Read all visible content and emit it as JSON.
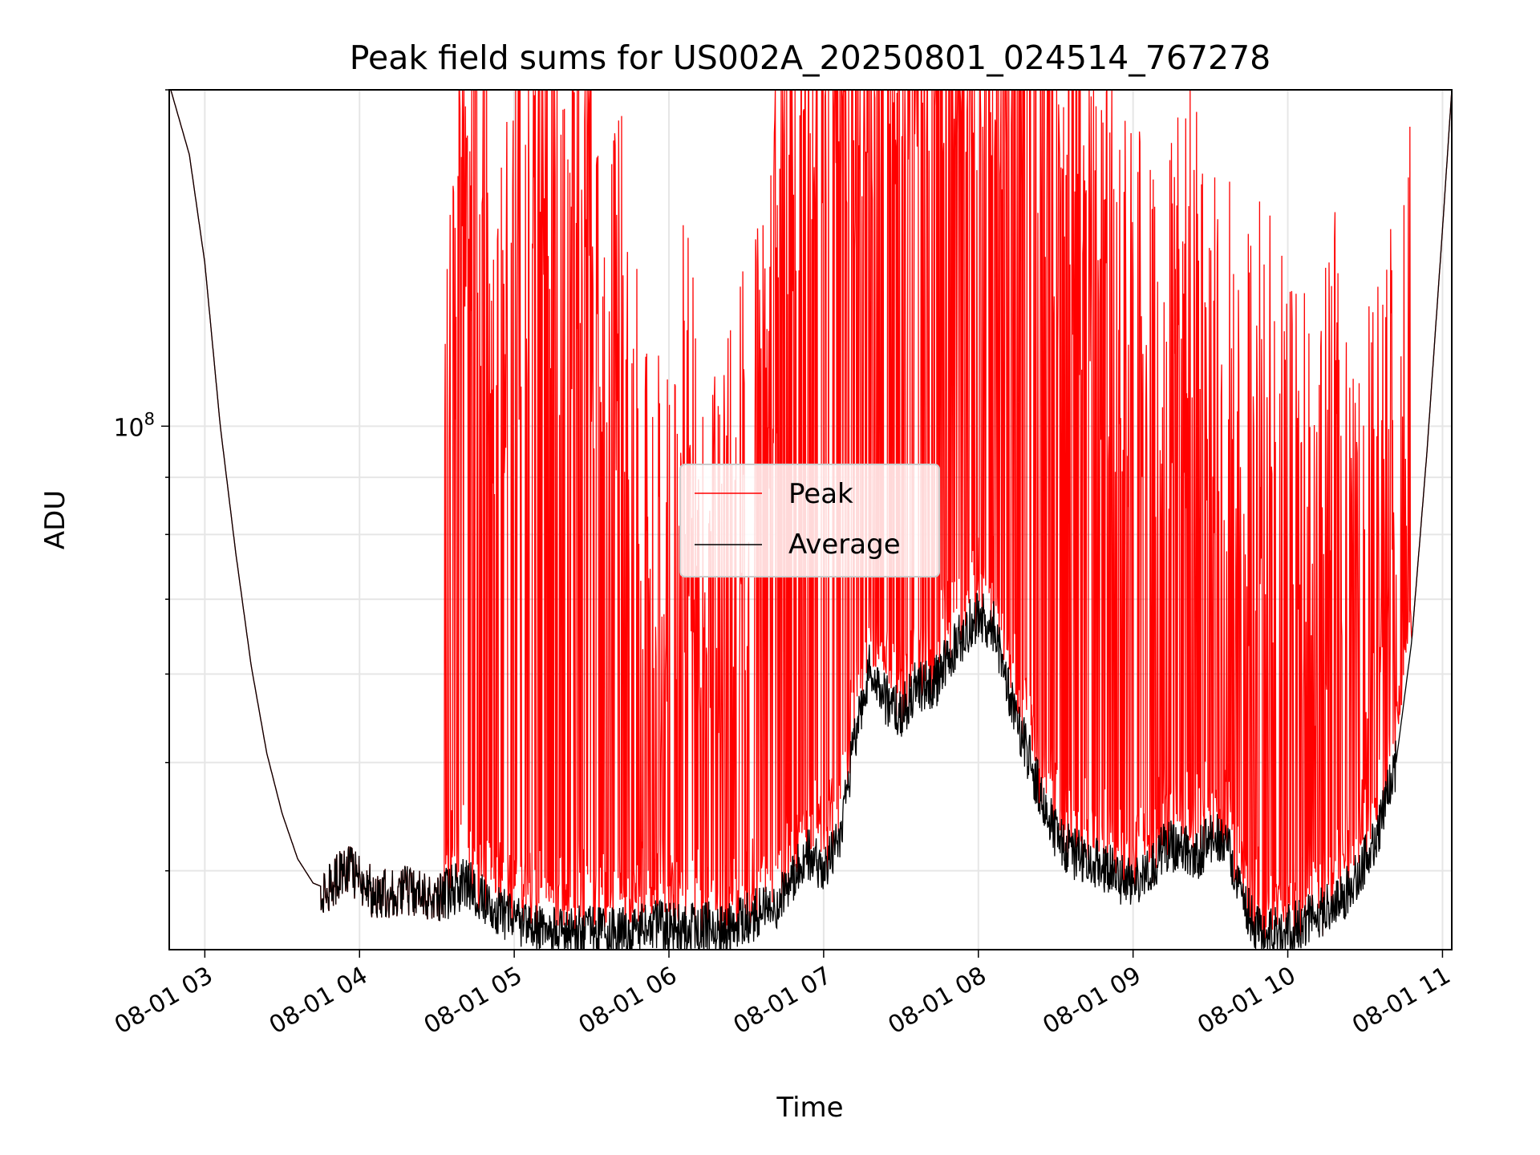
{
  "chart_data": {
    "type": "line",
    "title": "Peak field sums for US002A_20250801_024514_767278",
    "xlabel": "Time",
    "ylabel": "ADU",
    "x_ticks": [
      "08-01 03",
      "08-01 04",
      "08-01 05",
      "08-01 06",
      "08-01 07",
      "08-01 08",
      "08-01 09",
      "08-01 10",
      "08-01 11"
    ],
    "y_ticks": [
      {
        "base": "10",
        "exp": "8"
      }
    ],
    "y_scale": "log",
    "xlim_hours": [
      2.77,
      11.06
    ],
    "ylim": [
      34000000,
      200000000
    ],
    "grid": true,
    "legend_position": "center",
    "series": [
      {
        "name": "Peak",
        "color": "#ff0000",
        "hours": [
          2.78,
          2.9,
          3.0,
          3.1,
          3.2,
          3.3,
          3.4,
          3.5,
          3.6,
          3.7,
          3.8,
          3.9,
          4.0,
          4.1,
          4.2,
          4.3,
          4.4,
          4.5,
          4.6,
          4.7,
          4.8,
          4.9,
          5.0,
          5.1,
          5.2,
          5.3,
          5.4,
          5.5,
          5.6,
          5.7,
          5.8,
          5.9,
          6.0,
          6.1,
          6.2,
          6.3,
          6.4,
          6.5,
          6.6,
          6.7,
          6.8,
          6.9,
          7.0,
          7.1,
          7.2,
          7.3,
          7.4,
          7.5,
          7.6,
          7.7,
          7.8,
          7.9,
          8.0,
          8.1,
          8.2,
          8.3,
          8.4,
          8.5,
          8.6,
          8.7,
          8.8,
          8.9,
          9.0,
          9.1,
          9.2,
          9.3,
          9.4,
          9.5,
          9.6,
          9.7,
          9.8,
          9.9,
          10.0,
          10.1,
          10.2,
          10.3,
          10.4,
          10.5,
          10.6,
          10.7,
          10.8,
          10.9,
          11.0,
          11.06
        ],
        "values": [
          200000000,
          175000000,
          140000000,
          100000000,
          77000000,
          61000000,
          51000000,
          45000000,
          41000000,
          39000000,
          38500000,
          40000000,
          39500000,
          38000000,
          38300000,
          38500000,
          38000000,
          38200000,
          110000000,
          150000000,
          120000000,
          90000000,
          110000000,
          130000000,
          150000000,
          95000000,
          140000000,
          120000000,
          80000000,
          100000000,
          70000000,
          55000000,
          60000000,
          75000000,
          65000000,
          55000000,
          60000000,
          70000000,
          85000000,
          110000000,
          150000000,
          170000000,
          185000000,
          190000000,
          170000000,
          180000000,
          195000000,
          198000000,
          199000000,
          200000000,
          199000000,
          198000000,
          197000000,
          196000000,
          193000000,
          190000000,
          175000000,
          140000000,
          125000000,
          120000000,
          110000000,
          100000000,
          95000000,
          85000000,
          90000000,
          95000000,
          105000000,
          100000000,
          85000000,
          70000000,
          80000000,
          75000000,
          70000000,
          65000000,
          60000000,
          80000000,
          65000000,
          60000000,
          70000000,
          75000000,
          100000000,
          140000000,
          190000000,
          200000000
        ]
      },
      {
        "name": "Average",
        "color": "#000000",
        "hours": [
          2.78,
          2.9,
          3.0,
          3.1,
          3.2,
          3.3,
          3.4,
          3.5,
          3.6,
          3.7,
          3.8,
          3.9,
          4.0,
          4.1,
          4.2,
          4.3,
          4.4,
          4.5,
          4.6,
          4.7,
          4.8,
          4.9,
          5.0,
          5.1,
          5.2,
          5.3,
          5.4,
          5.5,
          5.6,
          5.7,
          5.8,
          5.9,
          6.0,
          6.1,
          6.2,
          6.3,
          6.4,
          6.5,
          6.6,
          6.7,
          6.8,
          6.9,
          7.0,
          7.1,
          7.2,
          7.3,
          7.4,
          7.5,
          7.6,
          7.7,
          7.8,
          7.9,
          8.0,
          8.1,
          8.2,
          8.3,
          8.4,
          8.5,
          8.6,
          8.7,
          8.8,
          8.9,
          9.0,
          9.1,
          9.2,
          9.3,
          9.4,
          9.5,
          9.6,
          9.7,
          9.8,
          9.9,
          10.0,
          10.1,
          10.2,
          10.3,
          10.4,
          10.5,
          10.6,
          10.7,
          10.8,
          10.9,
          11.0,
          11.06
        ],
        "values": [
          200000000,
          175000000,
          140000000,
          100000000,
          77000000,
          61000000,
          51000000,
          45000000,
          41000000,
          39000000,
          38500000,
          40000000,
          39500000,
          38000000,
          38300000,
          38500000,
          37800000,
          37500000,
          38500000,
          39000000,
          37500000,
          36800000,
          36000000,
          35700000,
          35300000,
          35200000,
          35400000,
          35400000,
          35100000,
          35200000,
          35300000,
          35700000,
          35600000,
          35400000,
          35500000,
          35600000,
          35700000,
          36200000,
          36800000,
          37500000,
          39500000,
          41500000,
          40000000,
          43000000,
          52000000,
          61000000,
          57000000,
          55000000,
          59000000,
          58000000,
          62000000,
          65000000,
          68000000,
          66000000,
          58000000,
          52000000,
          47000000,
          43000000,
          41500000,
          41000000,
          40500000,
          39500000,
          39000000,
          40000000,
          42000000,
          42000000,
          41000000,
          43000000,
          42500000,
          38000000,
          35600000,
          35200000,
          35400000,
          35900000,
          36500000,
          37500000,
          38500000,
          41000000,
          44000000,
          50000000,
          64000000,
          95000000,
          150000000,
          200000000
        ]
      }
    ]
  }
}
